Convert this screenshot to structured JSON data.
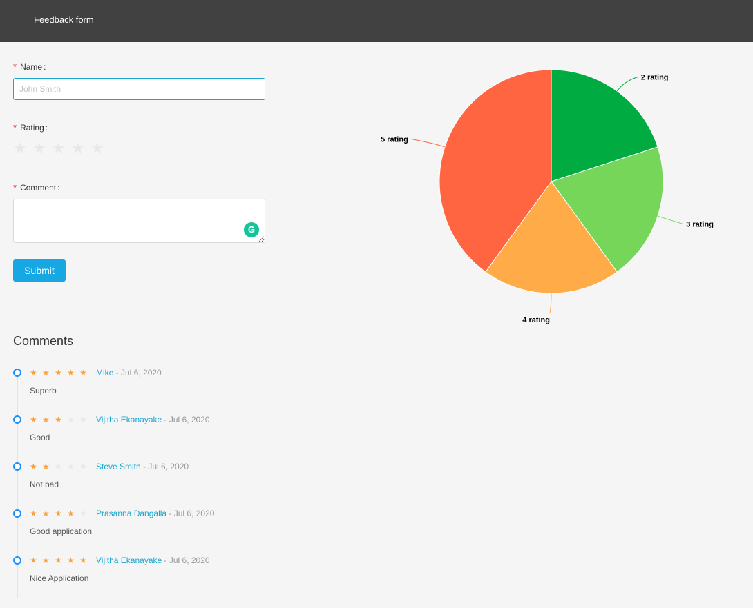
{
  "header": {
    "title": "Feedback form"
  },
  "form": {
    "name_label": "Name",
    "name_placeholder": "John Smith",
    "rating_label": "Rating",
    "rating_value": 0,
    "rating_max": 5,
    "comment_label": "Comment",
    "submit_label": "Submit",
    "required_mark": "*",
    "colon": ":"
  },
  "comments": {
    "heading": "Comments",
    "items": [
      {
        "rating": 5,
        "author": "Mike",
        "date": "Jul 6, 2020",
        "text": "Superb"
      },
      {
        "rating": 3,
        "author": "Vijitha Ekanayake",
        "date": "Jul 6, 2020",
        "text": "Good"
      },
      {
        "rating": 2,
        "author": "Steve Smith",
        "date": "Jul 6, 2020",
        "text": "Not bad"
      },
      {
        "rating": 4,
        "author": "Prasanna Dangalla",
        "date": "Jul 6, 2020",
        "text": "Good application"
      },
      {
        "rating": 5,
        "author": "Vijitha Ekanayake",
        "date": "Jul 6, 2020",
        "text": "Nice Application"
      }
    ]
  },
  "chart_data": {
    "type": "pie",
    "slices": [
      {
        "label": "2 rating",
        "value": 1,
        "color": "#00ac42"
      },
      {
        "label": "3 rating",
        "value": 1,
        "color": "#76d65a"
      },
      {
        "label": "4 rating",
        "value": 1,
        "color": "#ffab48"
      },
      {
        "label": "5 rating",
        "value": 2,
        "color": "#ff6541"
      }
    ]
  },
  "colors": {
    "accent": "#1ba6d0",
    "header_bg": "#414141",
    "star_on": "#f9a03f",
    "star_off": "#e8e8e8",
    "required": "#f5222d"
  },
  "icons": {
    "star": "star-icon",
    "grammarly": "grammarly-icon"
  }
}
